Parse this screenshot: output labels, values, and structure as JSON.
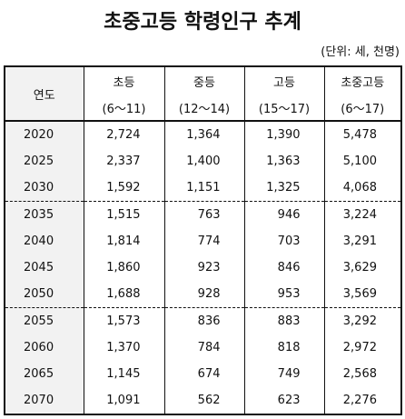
{
  "title": "초중고등 학령인구 추계",
  "unit": "(단위: 세, 천명)",
  "table": {
    "header": {
      "year": "연도",
      "columns": [
        "초등",
        "중등",
        "고등",
        "초중고등"
      ],
      "ages": [
        "(6～11)",
        "(12～14)",
        "(15～17)",
        "(6～17)"
      ]
    },
    "groups": [
      [
        [
          "2020",
          "2,724",
          "1,364",
          "1,390",
          "5,478"
        ],
        [
          "2025",
          "2,337",
          "1,400",
          "1,363",
          "5,100"
        ],
        [
          "2030",
          "1,592",
          "1,151",
          "1,325",
          "4,068"
        ]
      ],
      [
        [
          "2035",
          "1,515",
          "763",
          "946",
          "3,224"
        ],
        [
          "2040",
          "1,814",
          "774",
          "703",
          "3,291"
        ],
        [
          "2045",
          "1,860",
          "923",
          "846",
          "3,629"
        ],
        [
          "2050",
          "1,688",
          "928",
          "953",
          "3,569"
        ]
      ],
      [
        [
          "2055",
          "1,573",
          "836",
          "883",
          "3,292"
        ],
        [
          "2060",
          "1,370",
          "784",
          "818",
          "2,972"
        ],
        [
          "2065",
          "1,145",
          "674",
          "749",
          "2,568"
        ],
        [
          "2070",
          "1,091",
          "562",
          "623",
          "2,276"
        ]
      ]
    ]
  }
}
